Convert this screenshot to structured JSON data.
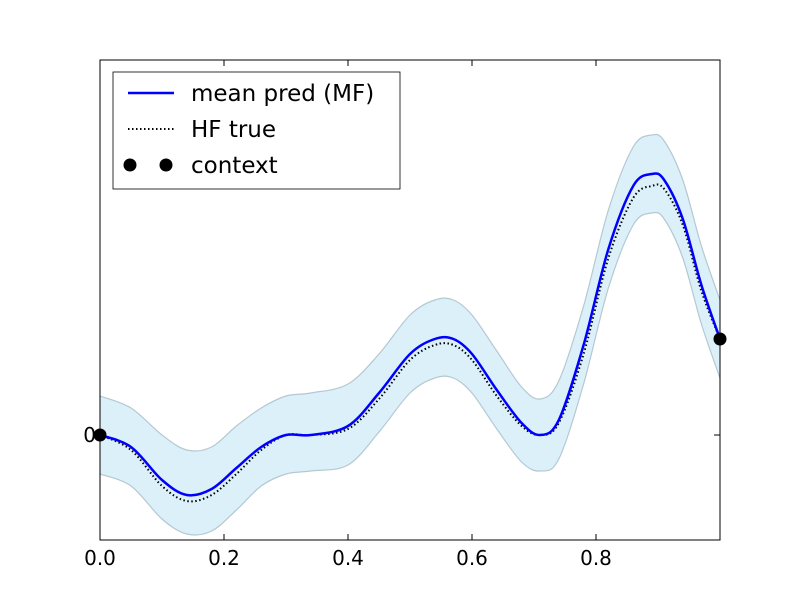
{
  "chart_data": {
    "type": "line",
    "title": "",
    "xlabel": "",
    "ylabel": "",
    "xlim": [
      0.0,
      1.0
    ],
    "ylim": [
      -0.35,
      1.25
    ],
    "x_ticks": [
      0.0,
      0.2,
      0.4,
      0.6,
      0.8
    ],
    "x_tick_labels": [
      "0.0",
      "0.2",
      "0.4",
      "0.6",
      "0.8"
    ],
    "y_ticks": [
      0
    ],
    "y_tick_labels": [
      "0"
    ],
    "grid": false,
    "legend_position": "top-left",
    "legend": [
      {
        "label": "mean pred (MF)",
        "style": "solid-line",
        "color": "#0000ff"
      },
      {
        "label": "HF true",
        "style": "dotted-line",
        "color": "#000000"
      },
      {
        "label": "context",
        "style": "markers",
        "color": "#000000"
      }
    ],
    "band_color": "#dcf0fa",
    "band_edge_color": "#b4c8d2",
    "series": [
      {
        "name": "mean pred (MF)",
        "color": "#0000ff",
        "x": [
          0.0,
          0.05,
          0.1,
          0.14,
          0.18,
          0.22,
          0.26,
          0.3,
          0.34,
          0.4,
          0.45,
          0.5,
          0.54,
          0.57,
          0.6,
          0.64,
          0.68,
          0.71,
          0.74,
          0.78,
          0.82,
          0.86,
          0.89,
          0.91,
          0.94,
          0.97,
          1.0
        ],
        "y": [
          0.0,
          -0.04,
          -0.15,
          -0.2,
          -0.18,
          -0.11,
          -0.04,
          0.0,
          0.0,
          0.03,
          0.14,
          0.27,
          0.32,
          0.32,
          0.27,
          0.15,
          0.04,
          0.0,
          0.05,
          0.3,
          0.62,
          0.83,
          0.87,
          0.85,
          0.72,
          0.5,
          0.32
        ]
      },
      {
        "name": "HF true",
        "color": "#000000",
        "x": [
          0.0,
          0.05,
          0.1,
          0.14,
          0.18,
          0.22,
          0.26,
          0.3,
          0.34,
          0.4,
          0.45,
          0.5,
          0.54,
          0.57,
          0.6,
          0.64,
          0.68,
          0.71,
          0.74,
          0.78,
          0.82,
          0.86,
          0.89,
          0.91,
          0.94,
          0.97,
          1.0
        ],
        "y": [
          0.0,
          -0.05,
          -0.17,
          -0.22,
          -0.2,
          -0.13,
          -0.05,
          0.0,
          0.0,
          0.02,
          0.12,
          0.25,
          0.3,
          0.3,
          0.25,
          0.13,
          0.03,
          0.0,
          0.04,
          0.27,
          0.59,
          0.79,
          0.83,
          0.82,
          0.7,
          0.48,
          0.32
        ]
      }
    ],
    "band": {
      "x": [
        0.0,
        0.05,
        0.1,
        0.14,
        0.18,
        0.22,
        0.26,
        0.3,
        0.34,
        0.4,
        0.45,
        0.5,
        0.54,
        0.57,
        0.6,
        0.64,
        0.68,
        0.71,
        0.74,
        0.78,
        0.82,
        0.86,
        0.89,
        0.91,
        0.94,
        0.97,
        1.0
      ],
      "upper": [
        0.13,
        0.09,
        0.0,
        -0.05,
        -0.04,
        0.03,
        0.09,
        0.13,
        0.14,
        0.17,
        0.27,
        0.4,
        0.45,
        0.45,
        0.4,
        0.28,
        0.16,
        0.12,
        0.18,
        0.43,
        0.75,
        0.96,
        1.0,
        0.98,
        0.85,
        0.63,
        0.45
      ],
      "lower": [
        -0.13,
        -0.17,
        -0.28,
        -0.33,
        -0.32,
        -0.25,
        -0.17,
        -0.13,
        -0.12,
        -0.1,
        0.01,
        0.14,
        0.19,
        0.19,
        0.14,
        0.02,
        -0.09,
        -0.12,
        -0.08,
        0.17,
        0.49,
        0.7,
        0.74,
        0.72,
        0.59,
        0.37,
        0.19
      ]
    },
    "context_points": {
      "name": "context",
      "x": [
        0.0,
        1.0
      ],
      "y": [
        0.0,
        0.32
      ]
    }
  }
}
